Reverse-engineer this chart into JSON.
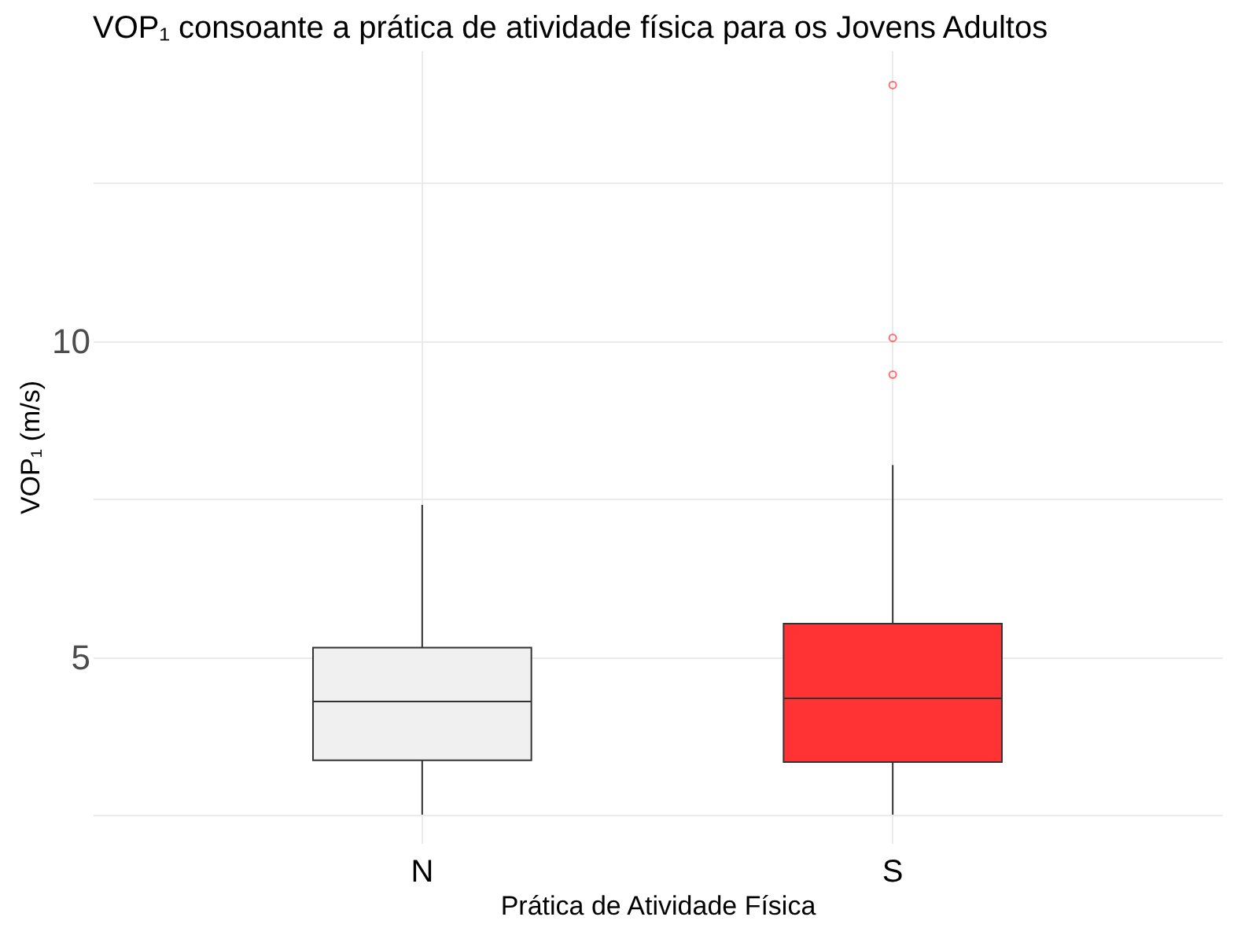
{
  "chart_data": {
    "type": "box",
    "title": "VOP₁ consoante a prática de atividade física para os Jovens Adultos",
    "xlabel": "Prática de Atividade Física",
    "ylabel": "VOP₁ (m/s)",
    "categories": [
      "N",
      "S"
    ],
    "boxes": [
      {
        "low": 2.51,
        "q1": 3.37,
        "median": 4.3,
        "q3": 5.15,
        "high": 7.41
      },
      {
        "low": 2.51,
        "q1": 3.34,
        "median": 4.35,
        "q3": 5.53,
        "high": 8.04,
        "outliers": [
          14.05,
          10.05,
          9.47
        ]
      }
    ],
    "colors": [
      "#f0f0f0",
      "#ff3333"
    ],
    "ylim": [
      2.06,
      14.6
    ],
    "yticks": [
      {
        "value": 2.5,
        "label": null
      },
      5,
      {
        "value": 7.5,
        "label": null
      },
      10,
      {
        "value": 12.5,
        "label": null
      }
    ],
    "grid": true
  }
}
